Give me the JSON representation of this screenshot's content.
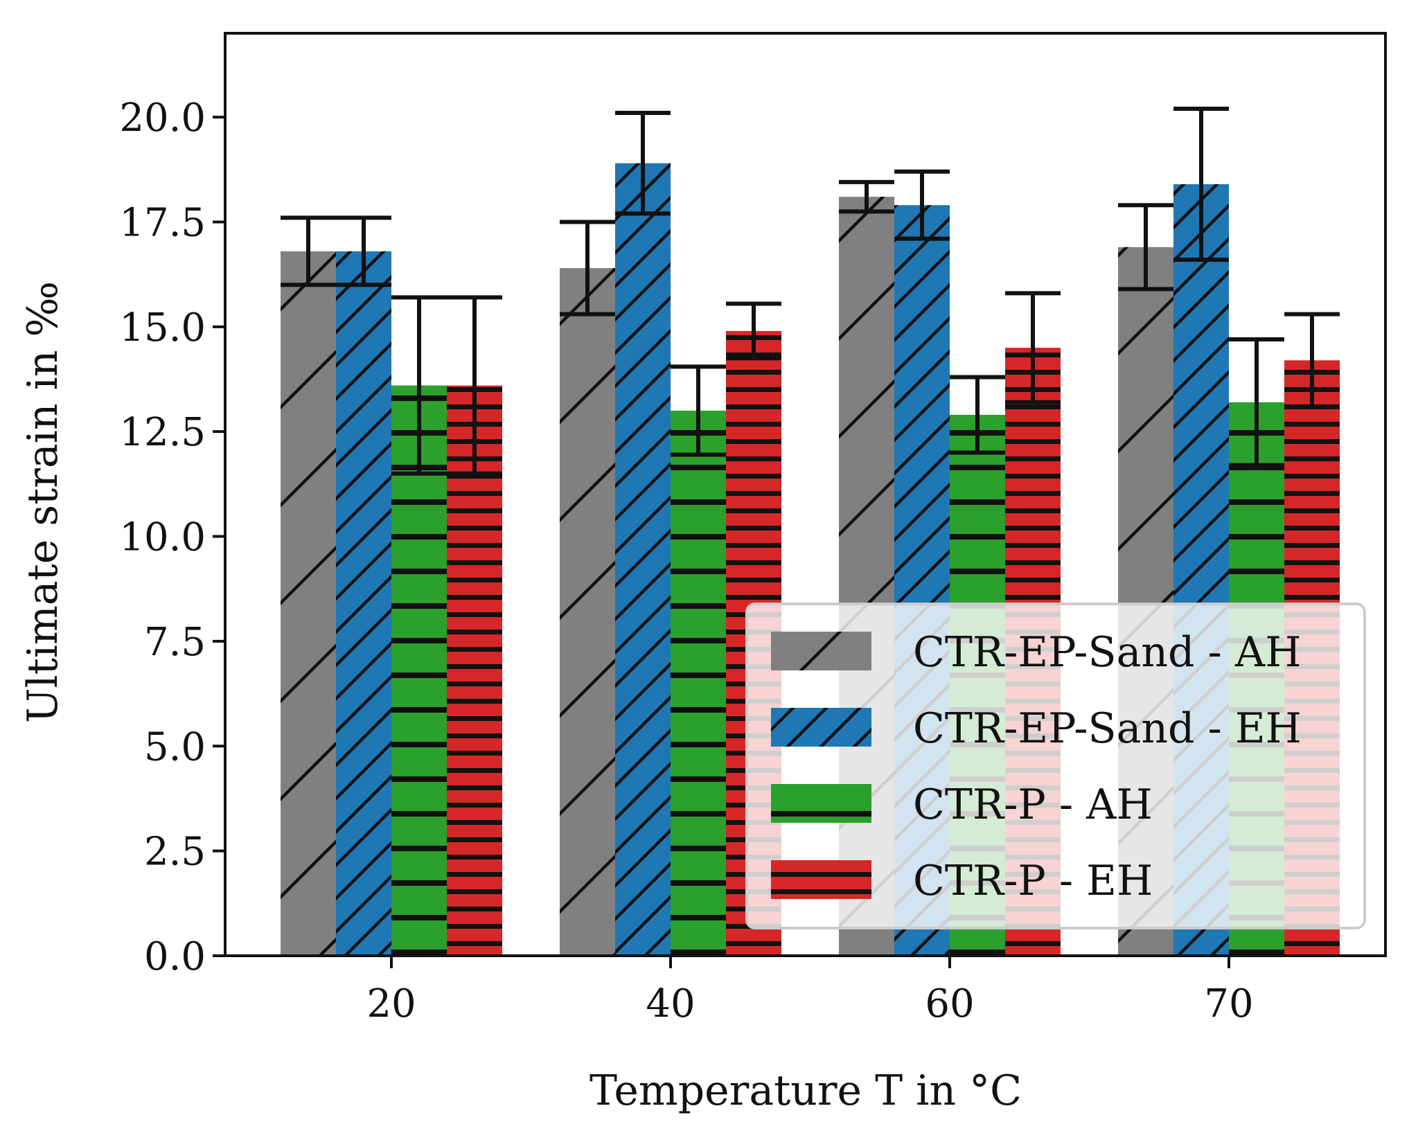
{
  "chart_data": {
    "type": "bar",
    "xlabel": "Temperature T in °C",
    "ylabel": "Ultimate strain in ‰",
    "categories": [
      "20",
      "40",
      "60",
      "70"
    ],
    "ylim": [
      0,
      22
    ],
    "yticks": [
      "0.0",
      "2.5",
      "5.0",
      "7.5",
      "10.0",
      "12.5",
      "15.0",
      "17.5",
      "20.0"
    ],
    "grid": false,
    "legend_position": "bottom-right",
    "series": [
      {
        "name": "CTR-EP-Sand - AH",
        "color": "#808080",
        "hatch": "sparse-diagonal",
        "values": [
          16.8,
          16.4,
          18.1,
          16.9
        ],
        "errors": [
          0.8,
          1.1,
          0.35,
          1.0
        ]
      },
      {
        "name": "CTR-EP-Sand - EH",
        "color": "#1f77b4",
        "hatch": "dense-diagonal",
        "values": [
          16.8,
          18.9,
          17.9,
          18.4
        ],
        "errors": [
          0.8,
          1.2,
          0.8,
          1.8
        ]
      },
      {
        "name": "CTR-P - AH",
        "color": "#2ca02c",
        "hatch": "horizontal",
        "values": [
          13.6,
          13.0,
          12.9,
          13.2
        ],
        "errors": [
          2.1,
          1.05,
          0.9,
          1.5
        ]
      },
      {
        "name": "CTR-P - EH",
        "color": "#d62728",
        "hatch": "dense-horizontal",
        "values": [
          13.6,
          14.9,
          14.5,
          14.2
        ],
        "errors": [
          2.1,
          0.65,
          1.3,
          1.1
        ]
      }
    ]
  }
}
